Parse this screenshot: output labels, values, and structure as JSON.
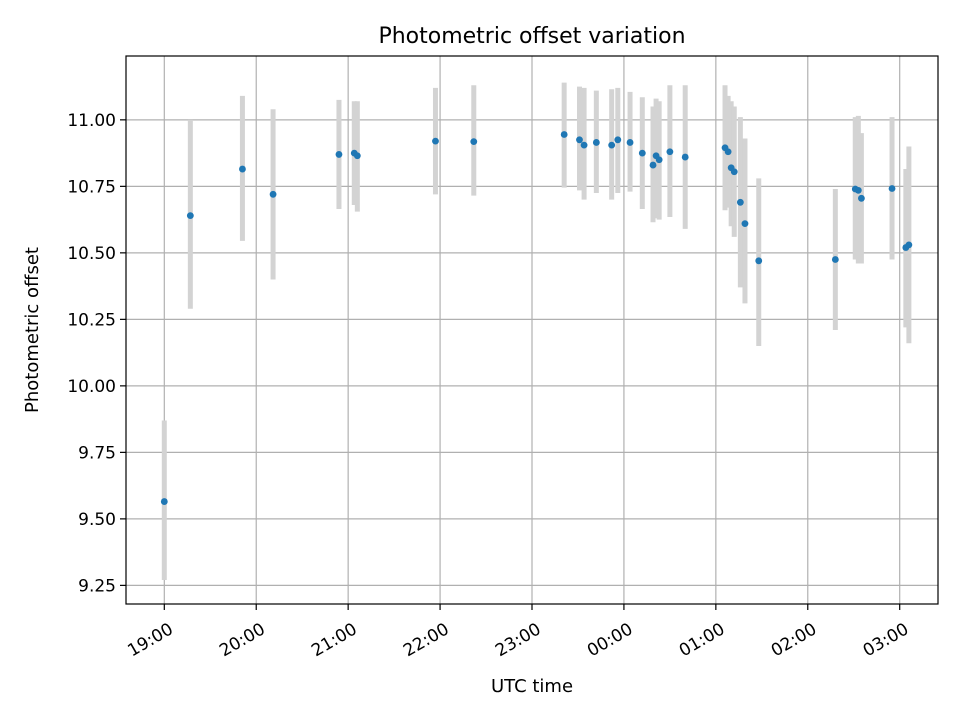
{
  "chart_data": {
    "type": "scatter",
    "title": "Photometric offset variation",
    "xlabel": "UTC time",
    "ylabel": "Photometric offset",
    "x_tick_labels": [
      "19:00",
      "20:00",
      "21:00",
      "22:00",
      "23:00",
      "00:00",
      "01:00",
      "02:00",
      "03:00"
    ],
    "y_tick_labels": [
      "9.25",
      "9.50",
      "9.75",
      "10.00",
      "10.25",
      "10.50",
      "10.75",
      "11.00"
    ],
    "xlim": [
      "2000-01-01T18:35",
      "2000-01-02T03:25"
    ],
    "ylim": [
      9.18,
      11.24
    ],
    "grid": true,
    "point_color": "#1f77b4",
    "errorbar_color": "#d3d3d3",
    "points": [
      {
        "time": "2000-01-01T19:00",
        "y": 9.565,
        "ylo": 9.27,
        "yhi": 9.87
      },
      {
        "time": "2000-01-01T19:17",
        "y": 10.64,
        "ylo": 10.29,
        "yhi": 11.0
      },
      {
        "time": "2000-01-01T19:51",
        "y": 10.815,
        "ylo": 10.545,
        "yhi": 11.09
      },
      {
        "time": "2000-01-01T20:11",
        "y": 10.72,
        "ylo": 10.4,
        "yhi": 11.04
      },
      {
        "time": "2000-01-01T20:54",
        "y": 10.87,
        "ylo": 10.665,
        "yhi": 11.075
      },
      {
        "time": "2000-01-01T21:04",
        "y": 10.875,
        "ylo": 10.68,
        "yhi": 11.07
      },
      {
        "time": "2000-01-01T21:06",
        "y": 10.865,
        "ylo": 10.655,
        "yhi": 11.07
      },
      {
        "time": "2000-01-01T21:57",
        "y": 10.92,
        "ylo": 10.72,
        "yhi": 11.12
      },
      {
        "time": "2000-01-01T22:22",
        "y": 10.918,
        "ylo": 10.715,
        "yhi": 11.13
      },
      {
        "time": "2000-01-01T23:21",
        "y": 10.945,
        "ylo": 10.745,
        "yhi": 11.14
      },
      {
        "time": "2000-01-01T23:31",
        "y": 10.925,
        "ylo": 10.735,
        "yhi": 11.125
      },
      {
        "time": "2000-01-01T23:34",
        "y": 10.905,
        "ylo": 10.7,
        "yhi": 11.12
      },
      {
        "time": "2000-01-01T23:42",
        "y": 10.915,
        "ylo": 10.725,
        "yhi": 11.11
      },
      {
        "time": "2000-01-01T23:52",
        "y": 10.905,
        "ylo": 10.7,
        "yhi": 11.115
      },
      {
        "time": "2000-01-01T23:56",
        "y": 10.925,
        "ylo": 10.725,
        "yhi": 11.12
      },
      {
        "time": "2000-01-02T00:04",
        "y": 10.915,
        "ylo": 10.73,
        "yhi": 11.105
      },
      {
        "time": "2000-01-02T00:12",
        "y": 10.875,
        "ylo": 10.665,
        "yhi": 11.085
      },
      {
        "time": "2000-01-02T00:19",
        "y": 10.83,
        "ylo": 10.615,
        "yhi": 11.05
      },
      {
        "time": "2000-01-02T00:21",
        "y": 10.865,
        "ylo": 10.63,
        "yhi": 11.08
      },
      {
        "time": "2000-01-02T00:23",
        "y": 10.85,
        "ylo": 10.625,
        "yhi": 11.07
      },
      {
        "time": "2000-01-02T00:30",
        "y": 10.88,
        "ylo": 10.635,
        "yhi": 11.13
      },
      {
        "time": "2000-01-02T00:40",
        "y": 10.86,
        "ylo": 10.59,
        "yhi": 11.13
      },
      {
        "time": "2000-01-02T01:06",
        "y": 10.895,
        "ylo": 10.66,
        "yhi": 11.13
      },
      {
        "time": "2000-01-02T01:08",
        "y": 10.88,
        "ylo": 10.67,
        "yhi": 11.09
      },
      {
        "time": "2000-01-02T01:10",
        "y": 10.82,
        "ylo": 10.6,
        "yhi": 11.07
      },
      {
        "time": "2000-01-02T01:12",
        "y": 10.805,
        "ylo": 10.56,
        "yhi": 11.05
      },
      {
        "time": "2000-01-02T01:16",
        "y": 10.69,
        "ylo": 10.37,
        "yhi": 11.01
      },
      {
        "time": "2000-01-02T01:19",
        "y": 10.61,
        "ylo": 10.31,
        "yhi": 10.93
      },
      {
        "time": "2000-01-02T01:28",
        "y": 10.47,
        "ylo": 10.15,
        "yhi": 10.78
      },
      {
        "time": "2000-01-02T02:18",
        "y": 10.475,
        "ylo": 10.21,
        "yhi": 10.74
      },
      {
        "time": "2000-01-02T02:31",
        "y": 10.74,
        "ylo": 10.475,
        "yhi": 11.01
      },
      {
        "time": "2000-01-02T02:33",
        "y": 10.735,
        "ylo": 10.46,
        "yhi": 11.015
      },
      {
        "time": "2000-01-02T02:35",
        "y": 10.705,
        "ylo": 10.46,
        "yhi": 10.95
      },
      {
        "time": "2000-01-02T02:55",
        "y": 10.742,
        "ylo": 10.475,
        "yhi": 11.01
      },
      {
        "time": "2000-01-02T03:04",
        "y": 10.52,
        "ylo": 10.22,
        "yhi": 10.815
      },
      {
        "time": "2000-01-02T03:06",
        "y": 10.53,
        "ylo": 10.16,
        "yhi": 10.9
      }
    ]
  }
}
